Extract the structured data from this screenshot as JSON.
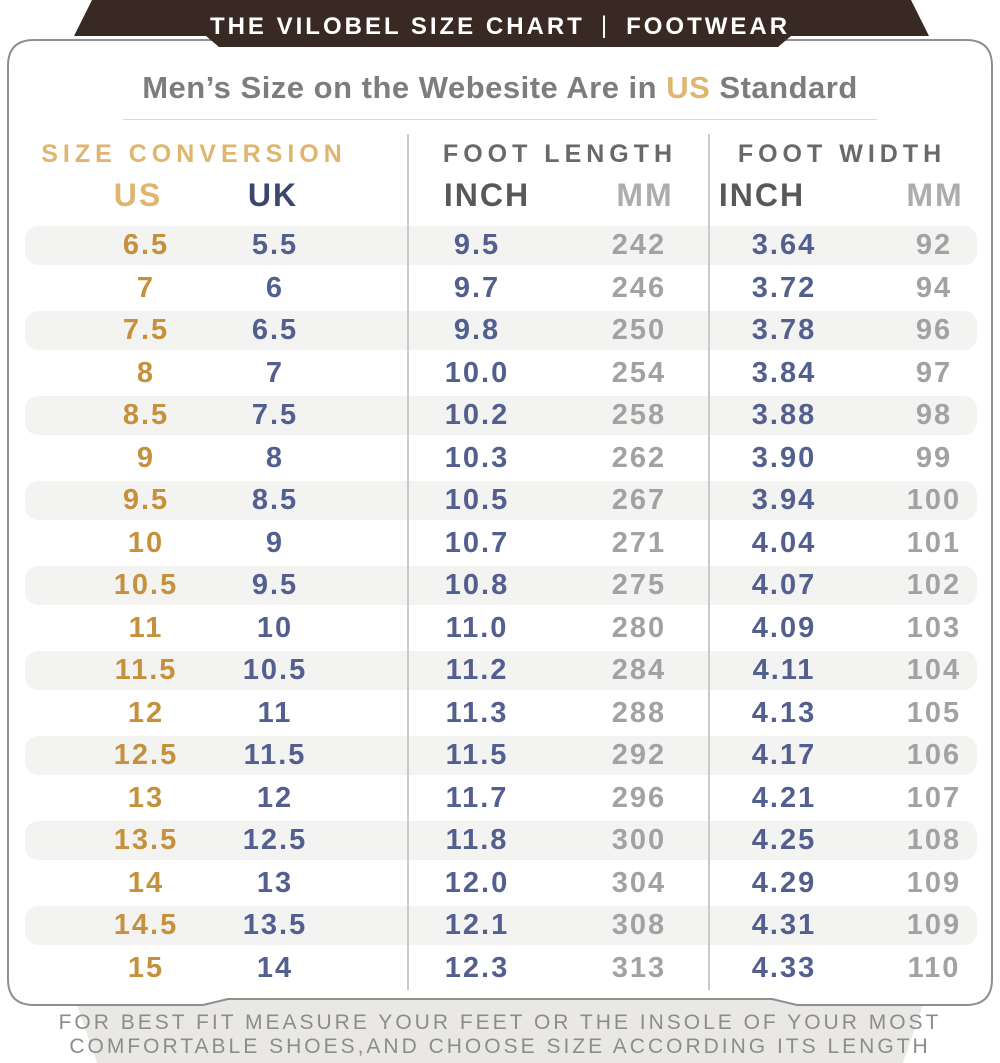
{
  "banner": {
    "left": "THE VILOBEL SIZE CHART",
    "separator": "|",
    "right": "FOOTWEAR"
  },
  "title": {
    "prefix": "Men’s Size on the Webesite Are in ",
    "highlight": "US",
    "suffix": " Standard"
  },
  "table": {
    "groups": [
      {
        "label": "SIZE CONVERSION",
        "columns": [
          "US",
          "UK"
        ]
      },
      {
        "label": "FOOT LENGTH",
        "columns": [
          "INCH",
          "MM"
        ]
      },
      {
        "label": "FOOT WIDTH",
        "columns": [
          "INCH",
          "MM"
        ]
      }
    ],
    "cell_names": [
      "us-size",
      "uk-size",
      "length-inch",
      "length-mm",
      "width-inch",
      "width-mm"
    ],
    "rows": [
      [
        "6.5",
        "5.5",
        "9.5",
        "242",
        "3.64",
        "92"
      ],
      [
        "7",
        "6",
        "9.7",
        "246",
        "3.72",
        "94"
      ],
      [
        "7.5",
        "6.5",
        "9.8",
        "250",
        "3.78",
        "96"
      ],
      [
        "8",
        "7",
        "10.0",
        "254",
        "3.84",
        "97"
      ],
      [
        "8.5",
        "7.5",
        "10.2",
        "258",
        "3.88",
        "98"
      ],
      [
        "9",
        "8",
        "10.3",
        "262",
        "3.90",
        "99"
      ],
      [
        "9.5",
        "8.5",
        "10.5",
        "267",
        "3.94",
        "100"
      ],
      [
        "10",
        "9",
        "10.7",
        "271",
        "4.04",
        "101"
      ],
      [
        "10.5",
        "9.5",
        "10.8",
        "275",
        "4.07",
        "102"
      ],
      [
        "11",
        "10",
        "11.0",
        "280",
        "4.09",
        "103"
      ],
      [
        "11.5",
        "10.5",
        "11.2",
        "284",
        "4.11",
        "104"
      ],
      [
        "12",
        "11",
        "11.3",
        "288",
        "4.13",
        "105"
      ],
      [
        "12.5",
        "11.5",
        "11.5",
        "292",
        "4.17",
        "106"
      ],
      [
        "13",
        "12",
        "11.7",
        "296",
        "4.21",
        "107"
      ],
      [
        "13.5",
        "12.5",
        "11.8",
        "300",
        "4.25",
        "108"
      ],
      [
        "14",
        "13",
        "12.0",
        "304",
        "4.29",
        "109"
      ],
      [
        "14.5",
        "13.5",
        "12.1",
        "308",
        "4.31",
        "109"
      ],
      [
        "15",
        "14",
        "12.3",
        "313",
        "4.33",
        "110"
      ]
    ]
  },
  "footer": {
    "line1": "FOR BEST FIT MEASURE YOUR FEET OR THE INSOLE OF YOUR MOST",
    "line2": "COMFORTABLE SHOES,AND CHOOSE SIZE ACCORDING ITS LENGTH"
  },
  "colors": {
    "banner_bg": "#382a22",
    "banner_text": "#ffffff",
    "card_border": "#8f8f8f",
    "title_text": "#7d7d7d",
    "accent_gold_light": "#dfb570",
    "accent_gold": "#c6913c",
    "navy_dark": "#39466f",
    "slate": "#53608f",
    "gray_dark": "#58585a",
    "gray_light": "#adadad",
    "gray_data": "#a2a2a2",
    "header_gray": "#696969",
    "stripe": "#f3f3f2",
    "footer_bg": "#e9e8e4",
    "footer_text": "#8c8c8c",
    "rule": "#d9d9d9"
  }
}
